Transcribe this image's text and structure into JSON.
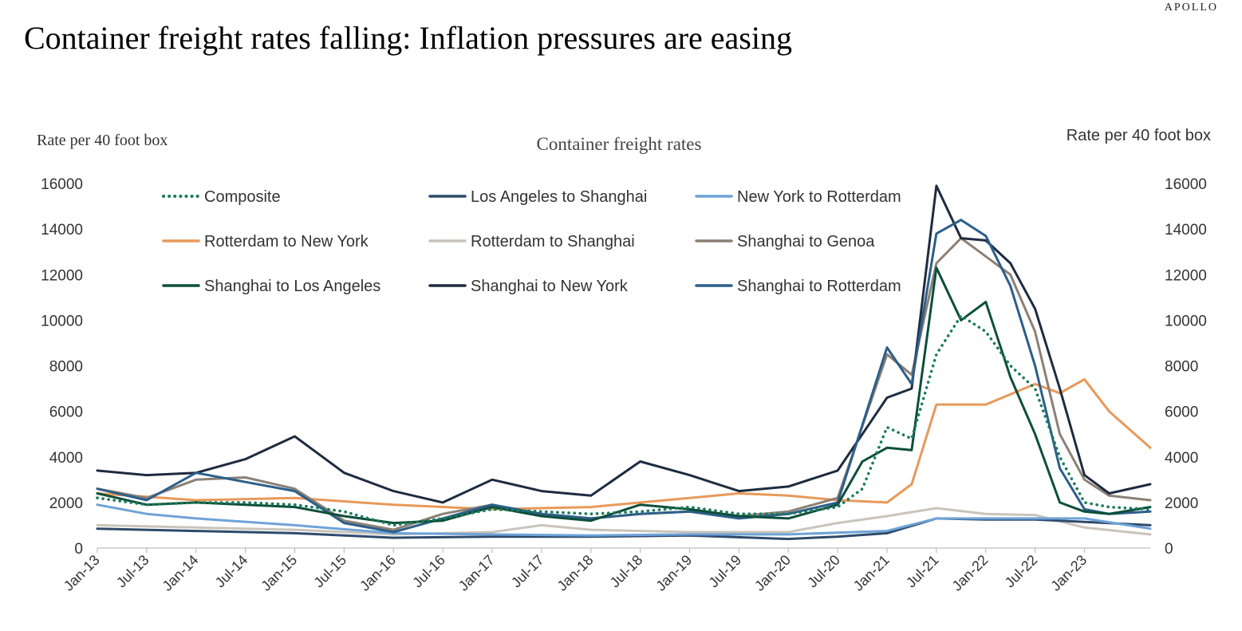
{
  "brand": "APOLLO",
  "headline": "Container freight rates falling: Inflation pressures are easing",
  "chart_data": {
    "type": "line",
    "title": "Container freight rates",
    "ylabel_left": "Rate per 40 foot box",
    "ylabel_right": "Rate per 40 foot box",
    "ylim": [
      0,
      16000
    ],
    "yticks": [
      0,
      2000,
      4000,
      6000,
      8000,
      10000,
      12000,
      14000,
      16000
    ],
    "xlim": [
      "2013-01",
      "2023-09"
    ],
    "xticks": [
      "Jan-13",
      "Jul-13",
      "Jan-14",
      "Jul-14",
      "Jan-15",
      "Jul-15",
      "Jan-16",
      "Jul-16",
      "Jan-17",
      "Jul-17",
      "Jan-18",
      "Jul-18",
      "Jan-19",
      "Jul-19",
      "Jan-20",
      "Jul-20",
      "Jan-21",
      "Jul-21",
      "Jan-22",
      "Jul-22",
      "Jan-23"
    ],
    "grid": false,
    "legend_position": "top-left",
    "series": [
      {
        "name": "Composite",
        "color": "#1a7a5c",
        "style": "dotted",
        "x": [
          "2013-01",
          "2013-07",
          "2014-01",
          "2014-07",
          "2015-01",
          "2015-07",
          "2016-01",
          "2016-07",
          "2017-01",
          "2017-07",
          "2018-01",
          "2018-07",
          "2019-01",
          "2019-07",
          "2020-01",
          "2020-07",
          "2020-10",
          "2021-01",
          "2021-04",
          "2021-07",
          "2021-10",
          "2022-01",
          "2022-04",
          "2022-07",
          "2022-10",
          "2023-01",
          "2023-04",
          "2023-09"
        ],
        "values": [
          2200,
          1900,
          2000,
          2000,
          1900,
          1600,
          1000,
          1300,
          1700,
          1600,
          1500,
          1600,
          1800,
          1500,
          1500,
          1800,
          2600,
          5300,
          4800,
          8500,
          10200,
          9500,
          8000,
          7000,
          4000,
          2000,
          1800,
          1700
        ]
      },
      {
        "name": "Los Angeles to Shanghai",
        "color": "#2e4a6b",
        "style": "solid",
        "x": [
          "2013-01",
          "2014-01",
          "2015-01",
          "2016-01",
          "2017-01",
          "2018-01",
          "2019-01",
          "2020-01",
          "2020-07",
          "2021-01",
          "2021-07",
          "2022-01",
          "2022-07",
          "2023-01",
          "2023-09"
        ],
        "values": [
          850,
          750,
          650,
          450,
          500,
          500,
          550,
          400,
          500,
          650,
          1300,
          1250,
          1250,
          1150,
          1000
        ]
      },
      {
        "name": "New York to Rotterdam",
        "color": "#6ea3d8",
        "style": "solid",
        "x": [
          "2013-01",
          "2013-07",
          "2014-01",
          "2015-01",
          "2016-01",
          "2017-01",
          "2018-01",
          "2019-01",
          "2020-01",
          "2021-01",
          "2021-07",
          "2022-01",
          "2022-07",
          "2023-01",
          "2023-09"
        ],
        "values": [
          1900,
          1500,
          1300,
          1000,
          650,
          600,
          550,
          600,
          600,
          750,
          1300,
          1300,
          1300,
          1300,
          850
        ]
      },
      {
        "name": "Rotterdam to New York",
        "color": "#e8995a",
        "style": "solid",
        "x": [
          "2013-01",
          "2014-01",
          "2015-01",
          "2016-01",
          "2017-01",
          "2018-01",
          "2019-01",
          "2019-07",
          "2020-01",
          "2020-07",
          "2021-01",
          "2021-04",
          "2021-07",
          "2022-01",
          "2022-07",
          "2022-10",
          "2023-01",
          "2023-04",
          "2023-09"
        ],
        "values": [
          2400,
          2100,
          2200,
          1900,
          1700,
          1800,
          2200,
          2400,
          2300,
          2100,
          2000,
          2800,
          6300,
          6300,
          7200,
          6800,
          7400,
          6000,
          4400
        ]
      },
      {
        "name": "Rotterdam to Shanghai",
        "color": "#c9c4bb",
        "style": "solid",
        "x": [
          "2013-01",
          "2014-01",
          "2015-01",
          "2016-01",
          "2017-01",
          "2017-07",
          "2018-01",
          "2019-01",
          "2020-01",
          "2020-07",
          "2021-01",
          "2021-07",
          "2022-01",
          "2022-07",
          "2023-01",
          "2023-09"
        ],
        "values": [
          1000,
          900,
          800,
          600,
          700,
          1000,
          800,
          700,
          700,
          1100,
          1400,
          1750,
          1500,
          1450,
          900,
          600
        ]
      },
      {
        "name": "Shanghai to Genoa",
        "color": "#8c8075",
        "style": "solid",
        "x": [
          "2013-01",
          "2013-07",
          "2014-01",
          "2014-07",
          "2015-01",
          "2015-07",
          "2016-01",
          "2016-07",
          "2017-01",
          "2017-07",
          "2018-01",
          "2018-07",
          "2019-01",
          "2019-07",
          "2020-01",
          "2020-07",
          "2021-01",
          "2021-04",
          "2021-07",
          "2021-10",
          "2022-01",
          "2022-04",
          "2022-07",
          "2022-10",
          "2023-01",
          "2023-04",
          "2023-09"
        ],
        "values": [
          2600,
          2200,
          3000,
          3100,
          2600,
          1200,
          800,
          1500,
          1900,
          1500,
          1300,
          1500,
          1600,
          1400,
          1600,
          2200,
          8500,
          7600,
          12500,
          13600,
          12800,
          12000,
          9500,
          5000,
          3000,
          2300,
          2100
        ]
      },
      {
        "name": "Shanghai to Los Angeles",
        "color": "#0d4f3a",
        "style": "solid",
        "x": [
          "2013-01",
          "2013-07",
          "2014-01",
          "2014-07",
          "2015-01",
          "2015-07",
          "2016-01",
          "2016-07",
          "2017-01",
          "2017-07",
          "2018-01",
          "2018-07",
          "2019-01",
          "2019-07",
          "2020-01",
          "2020-07",
          "2020-10",
          "2021-01",
          "2021-04",
          "2021-07",
          "2021-10",
          "2022-01",
          "2022-04",
          "2022-07",
          "2022-10",
          "2023-01",
          "2023-04",
          "2023-09"
        ],
        "values": [
          2400,
          1900,
          2000,
          1900,
          1800,
          1400,
          1100,
          1200,
          1800,
          1400,
          1200,
          1900,
          1700,
          1400,
          1300,
          1900,
          3800,
          4400,
          4300,
          12300,
          10000,
          10800,
          7500,
          5000,
          2000,
          1600,
          1500,
          1800
        ]
      },
      {
        "name": "Shanghai to New York",
        "color": "#1e2b40",
        "style": "solid",
        "x": [
          "2013-01",
          "2013-07",
          "2014-01",
          "2014-07",
          "2015-01",
          "2015-07",
          "2016-01",
          "2016-07",
          "2017-01",
          "2017-07",
          "2018-01",
          "2018-07",
          "2019-01",
          "2019-07",
          "2020-01",
          "2020-07",
          "2020-10",
          "2021-01",
          "2021-04",
          "2021-07",
          "2021-10",
          "2022-01",
          "2022-04",
          "2022-07",
          "2022-10",
          "2023-01",
          "2023-04",
          "2023-09"
        ],
        "values": [
          3400,
          3200,
          3300,
          3900,
          4900,
          3300,
          2500,
          2000,
          3000,
          2500,
          2300,
          3800,
          3200,
          2500,
          2700,
          3400,
          5000,
          6600,
          7000,
          15900,
          13600,
          13500,
          12500,
          10500,
          7000,
          3200,
          2400,
          2800
        ]
      },
      {
        "name": "Shanghai to Rotterdam",
        "color": "#2c5f8a",
        "style": "solid",
        "x": [
          "2013-01",
          "2013-07",
          "2014-01",
          "2014-07",
          "2015-01",
          "2015-07",
          "2016-01",
          "2016-07",
          "2017-01",
          "2017-07",
          "2018-01",
          "2018-07",
          "2019-01",
          "2019-07",
          "2020-01",
          "2020-07",
          "2021-01",
          "2021-04",
          "2021-07",
          "2021-10",
          "2022-01",
          "2022-04",
          "2022-07",
          "2022-10",
          "2023-01",
          "2023-04",
          "2023-09"
        ],
        "values": [
          2600,
          2100,
          3300,
          2900,
          2500,
          1100,
          700,
          1300,
          1900,
          1500,
          1300,
          1500,
          1600,
          1300,
          1500,
          2000,
          8800,
          7200,
          13800,
          14400,
          13700,
          11500,
          8000,
          3500,
          1700,
          1500,
          1600
        ]
      }
    ]
  }
}
